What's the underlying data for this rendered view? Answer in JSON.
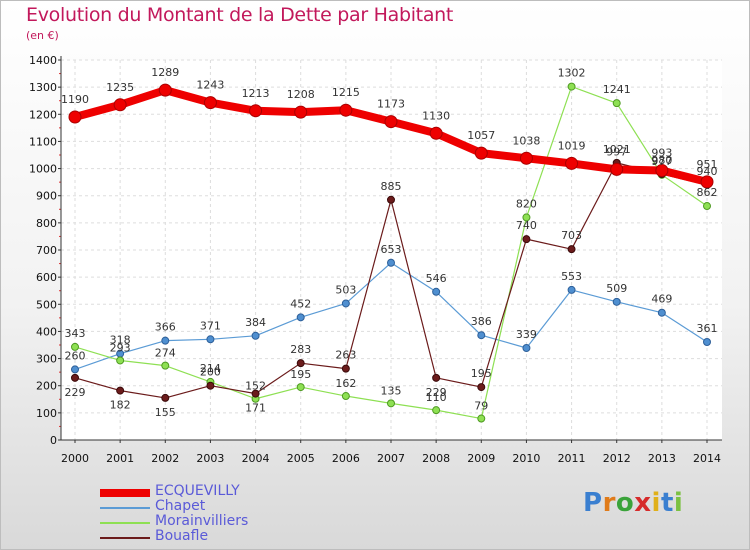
{
  "header": {
    "title": "Evolution du Montant de la Dette par Habitant",
    "subtitle": "(en €)"
  },
  "colors": {
    "title": "#c2185b",
    "ECQUEVILLY": "#ee0000",
    "Chapet": "#5b9bd5",
    "Morainvilliers": "#8ee053",
    "Bouafle": "#6b1b1b"
  },
  "logo": {
    "text": "Proxiti"
  },
  "chart_data": {
    "type": "line",
    "title": "Evolution du Montant de la Dette par Habitant",
    "ylabel": "(en €)",
    "xlabel": "",
    "ylim": [
      0,
      1400
    ],
    "yticks": [
      0,
      100,
      200,
      300,
      400,
      500,
      600,
      700,
      800,
      900,
      1000,
      1100,
      1200,
      1300,
      1400
    ],
    "grid": true,
    "legend": "bottom-left",
    "x": [
      2000,
      2001,
      2002,
      2003,
      2004,
      2005,
      2006,
      2007,
      2008,
      2009,
      2010,
      2011,
      2012,
      2013,
      2014
    ],
    "series": [
      {
        "name": "ECQUEVILLY",
        "values": [
          1190,
          1235,
          1289,
          1243,
          1213,
          1208,
          1215,
          1173,
          1130,
          1057,
          1038,
          1019,
          997,
          993,
          951
        ]
      },
      {
        "name": "Chapet",
        "values": [
          260,
          318,
          366,
          371,
          384,
          452,
          503,
          653,
          546,
          386,
          339,
          553,
          509,
          469,
          361
        ]
      },
      {
        "name": "Morainvilliers",
        "values": [
          343,
          293,
          274,
          214,
          152,
          195,
          162,
          135,
          110,
          79,
          820,
          1302,
          1241,
          977,
          862
        ]
      },
      {
        "name": "Bouafle",
        "values": [
          229,
          182,
          155,
          200,
          171,
          283,
          263,
          885,
          229,
          195,
          740,
          703,
          1021,
          980,
          940
        ]
      }
    ]
  }
}
